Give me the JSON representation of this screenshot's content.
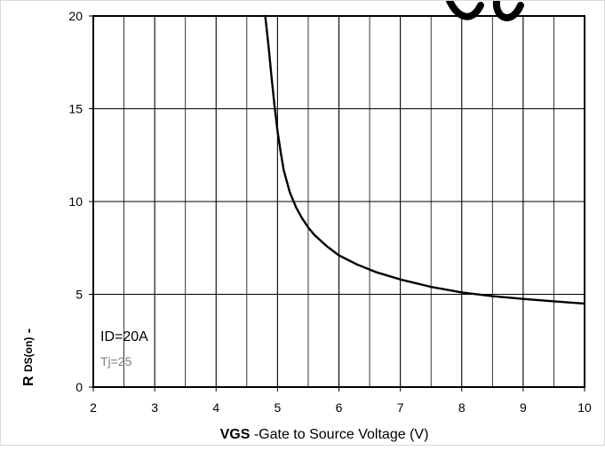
{
  "chart_data": {
    "type": "line",
    "title": "",
    "xlabel": {
      "bold": "VGS",
      "rest": "-Gate to Source Voltage (V)"
    },
    "ylabel": {
      "bold_prefix": "R",
      "subscript": "DS(on)",
      "suffix": "-"
    },
    "xlim": [
      2,
      10
    ],
    "ylim": [
      0,
      20
    ],
    "xticks": [
      2,
      3,
      4,
      5,
      6,
      7,
      8,
      9,
      10
    ],
    "yticks": [
      0,
      5,
      10,
      15,
      20
    ],
    "x_minor_step": 0.5,
    "grid": true,
    "series": [
      {
        "color": "#000000",
        "x": [
          4.8,
          4.85,
          4.9,
          4.95,
          5.0,
          5.05,
          5.1,
          5.2,
          5.3,
          5.4,
          5.5,
          5.6,
          5.8,
          6.0,
          6.3,
          6.6,
          7.0,
          7.5,
          8.0,
          8.5,
          9.0,
          9.5,
          10.0
        ],
        "y": [
          20.0,
          18.5,
          16.8,
          15.2,
          13.8,
          12.7,
          11.7,
          10.5,
          9.7,
          9.1,
          8.6,
          8.2,
          7.6,
          7.1,
          6.6,
          6.2,
          5.8,
          5.4,
          5.1,
          4.9,
          4.75,
          4.62,
          4.5
        ]
      }
    ],
    "annotations": {
      "condition_1": "ID=20A",
      "condition_2": "Tj=25"
    }
  },
  "colors": {
    "curve": "#000000",
    "grid": "#000000",
    "secondary_text": "#808080",
    "frame": "#d9d9d9"
  }
}
